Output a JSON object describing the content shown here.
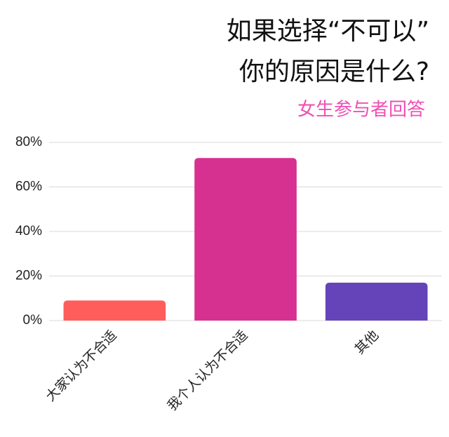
{
  "chart_data": {
    "type": "bar",
    "title": [
      "如果选择“不可以”",
      "你的原因是什么?"
    ],
    "subtitle": "女生参与者回答",
    "categories": [
      "大家认为不合适",
      "我个人认为不合适",
      "其他"
    ],
    "values": [
      9,
      73,
      17
    ],
    "colors": [
      "#ff5c5c",
      "#d63091",
      "#6444b8"
    ],
    "ylim": [
      0,
      80
    ],
    "yticks": [
      {
        "value": 0,
        "label": "0%"
      },
      {
        "value": 20,
        "label": "20%"
      },
      {
        "value": 40,
        "label": "40%"
      },
      {
        "value": 60,
        "label": "60%"
      },
      {
        "value": 80,
        "label": "80%"
      }
    ],
    "grid": true
  }
}
